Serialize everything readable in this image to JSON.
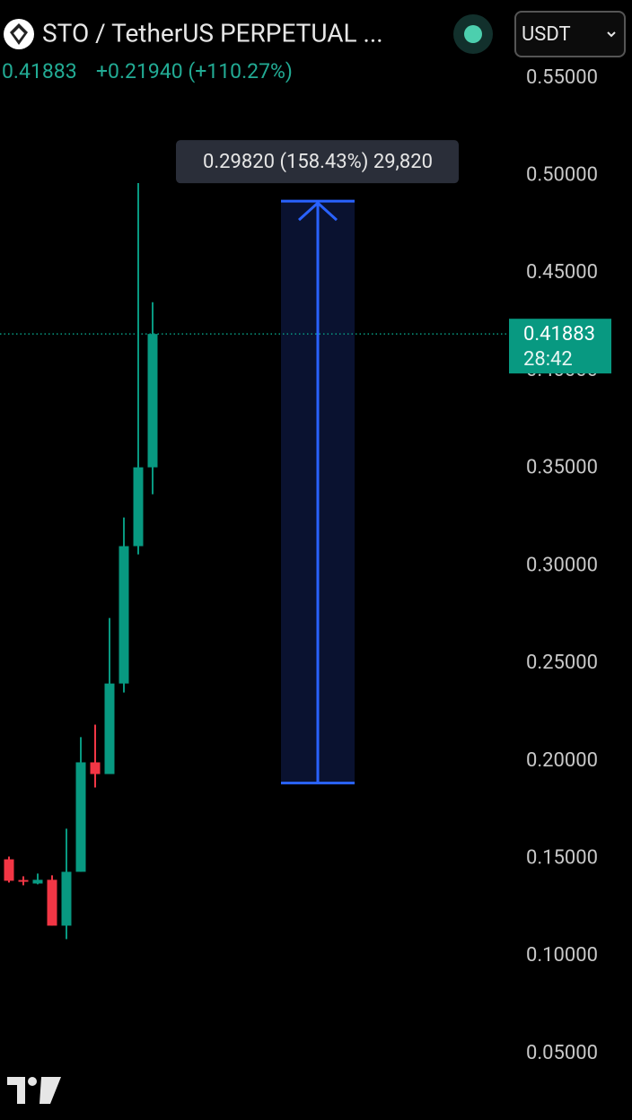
{
  "chart_data": {
    "type": "candlestick",
    "title": "STO / TetherUS PERPETUAL ...",
    "change": "+0.21940 (+110.27%)",
    "currency": "USDT",
    "last_price": 0.41883,
    "countdown": "28:42",
    "open": [
      0.1496,
      0.139,
      0.1372,
      0.1391,
      0.1156,
      0.1432,
      0.1993,
      0.1933,
      0.2397,
      0.3101,
      0.3505
    ],
    "high": [
      0.151,
      0.1409,
      0.1423,
      0.1414,
      0.1653,
      0.2122,
      0.2186,
      0.2733,
      0.3248,
      0.4962,
      0.4351
    ],
    "low": [
      0.1377,
      0.1363,
      0.1368,
      0.1156,
      0.1087,
      0.1432,
      0.1864,
      0.1933,
      0.2351,
      0.3059,
      0.3367
    ],
    "close": [
      0.1386,
      0.1386,
      0.1391,
      0.1156,
      0.1432,
      0.1993,
      0.1933,
      0.2397,
      0.3101,
      0.3505,
      0.41883
    ],
    "up_color": "#089981",
    "down_color": "#f23645",
    "measure": {
      "from": 0.1887,
      "to": 0.4869,
      "label": "0.29820 (158.43%) 29,820",
      "color": "#2962ff"
    },
    "ylim": [
      0.016,
      0.59
    ],
    "yticks": [
      {
        "value": 0.55,
        "label": "0.55000"
      },
      {
        "value": 0.5,
        "label": "0.50000"
      },
      {
        "value": 0.45,
        "label": "0.45000"
      },
      {
        "value": 0.4,
        "label": "0.40000"
      },
      {
        "value": 0.35,
        "label": "0.35000"
      },
      {
        "value": 0.3,
        "label": "0.30000"
      },
      {
        "value": 0.25,
        "label": "0.25000"
      },
      {
        "value": 0.2,
        "label": "0.20000"
      },
      {
        "value": 0.15,
        "label": "0.15000"
      },
      {
        "value": 0.1,
        "label": "0.10000"
      },
      {
        "value": 0.05,
        "label": "0.05000"
      }
    ]
  }
}
